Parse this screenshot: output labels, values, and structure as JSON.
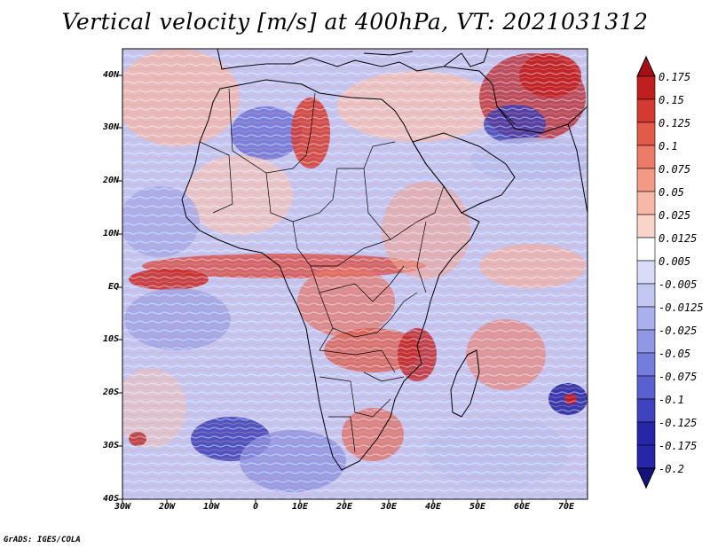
{
  "title": "Vertical velocity [m/s] at 400hPa, VT: 2021031312",
  "map": {
    "lat_labels": [
      "40N",
      "30N",
      "20N",
      "10N",
      "EQ",
      "10S",
      "20S",
      "30S",
      "40S"
    ],
    "lat_values": [
      40,
      30,
      20,
      10,
      0,
      -10,
      -20,
      -30,
      -40
    ],
    "lon_labels": [
      "30W",
      "20W",
      "10W",
      "0",
      "10E",
      "20E",
      "30E",
      "40E",
      "50E",
      "60E",
      "70E"
    ],
    "lon_values": [
      -30,
      -20,
      -10,
      0,
      10,
      20,
      30,
      40,
      50,
      60,
      70
    ],
    "lat_range": [
      -40,
      45
    ],
    "lon_range": [
      -30,
      75
    ]
  },
  "colorbar": {
    "labels": [
      "0.175",
      "0.15",
      "0.125",
      "0.1",
      "0.075",
      "0.05",
      "0.025",
      "0.0125",
      "0.005",
      "-0.005",
      "-0.0125",
      "-0.025",
      "-0.05",
      "-0.075",
      "-0.1",
      "-0.125",
      "-0.175",
      "-0.2"
    ],
    "colors": [
      "#a50f15",
      "#c11f1f",
      "#d53a32",
      "#e25a4a",
      "#ec7b67",
      "#f39a86",
      "#f8b8a8",
      "#fbd4c9",
      "#ffffff",
      "#d8dcf8",
      "#c3c7f3",
      "#aab0ee",
      "#9098e6",
      "#757ddc",
      "#5a60d0",
      "#3f43c0",
      "#2626a8",
      "#16137f"
    ]
  },
  "credit": "GrADS: IGES/COLA"
}
